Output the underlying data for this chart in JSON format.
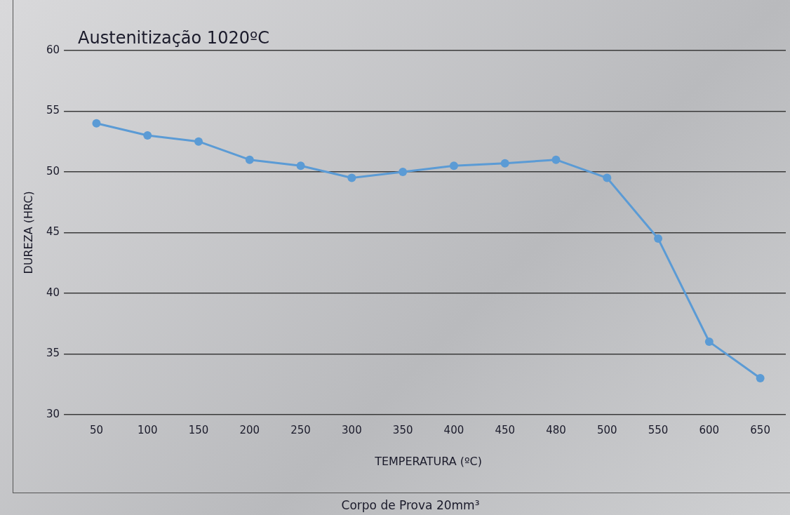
{
  "chart_data": {
    "type": "line",
    "title": "Austenitização 1020ºC",
    "xlabel": "TEMPERATURA (ºC)",
    "ylabel": "DUREZA (HRC)",
    "categories": [
      "50",
      "100",
      "150",
      "200",
      "250",
      "300",
      "350",
      "400",
      "450",
      "480",
      "500",
      "550",
      "600",
      "650"
    ],
    "series": [
      {
        "color": "#5b9bd5",
        "values": [
          54,
          53,
          52.5,
          51,
          50.5,
          49.5,
          50,
          50.5,
          50.7,
          51,
          49.5,
          44.5,
          36,
          33
        ]
      }
    ],
    "ylim": [
      30,
      60
    ],
    "yticks": [
      30,
      35,
      40,
      45,
      50,
      55,
      60
    ],
    "grid": "y",
    "legend": false,
    "marker": "circle",
    "line_style": "solid",
    "annotations": [
      "Corpo de Prova 20mm³"
    ]
  }
}
